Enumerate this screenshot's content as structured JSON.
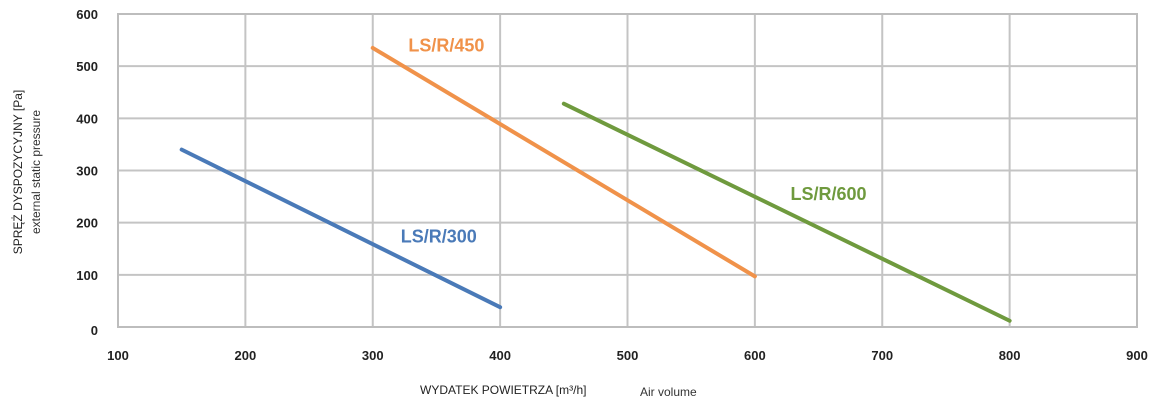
{
  "chart_data": {
    "type": "line",
    "title": "",
    "ylabel": "SPRĘŻ DYSPOZYCYJNY [Pa]",
    "ylabel_secondary": "external static pressure",
    "xlabel": "WYDATEK POWIETRZA [m³/h]",
    "xlabel_secondary": "Air volume",
    "xlim": [
      100,
      900
    ],
    "ylim": [
      0,
      600
    ],
    "x_ticks": [
      "100",
      "200",
      "300",
      "400",
      "500",
      "600",
      "700",
      "800",
      "900"
    ],
    "y_ticks": [
      "0",
      "100",
      "200",
      "300",
      "400",
      "500",
      "600"
    ],
    "grid": true,
    "series": [
      {
        "name": "LS/R/300",
        "color": "#4a7ab8",
        "x": [
          150,
          400
        ],
        "y": [
          340,
          38
        ]
      },
      {
        "name": "LS/R/450",
        "color": "#f0924a",
        "x": [
          300,
          600
        ],
        "y": [
          535,
          97
        ]
      },
      {
        "name": "LS/R/600",
        "color": "#6f9a3e",
        "x": [
          450,
          800
        ],
        "y": [
          428,
          12
        ]
      }
    ]
  }
}
